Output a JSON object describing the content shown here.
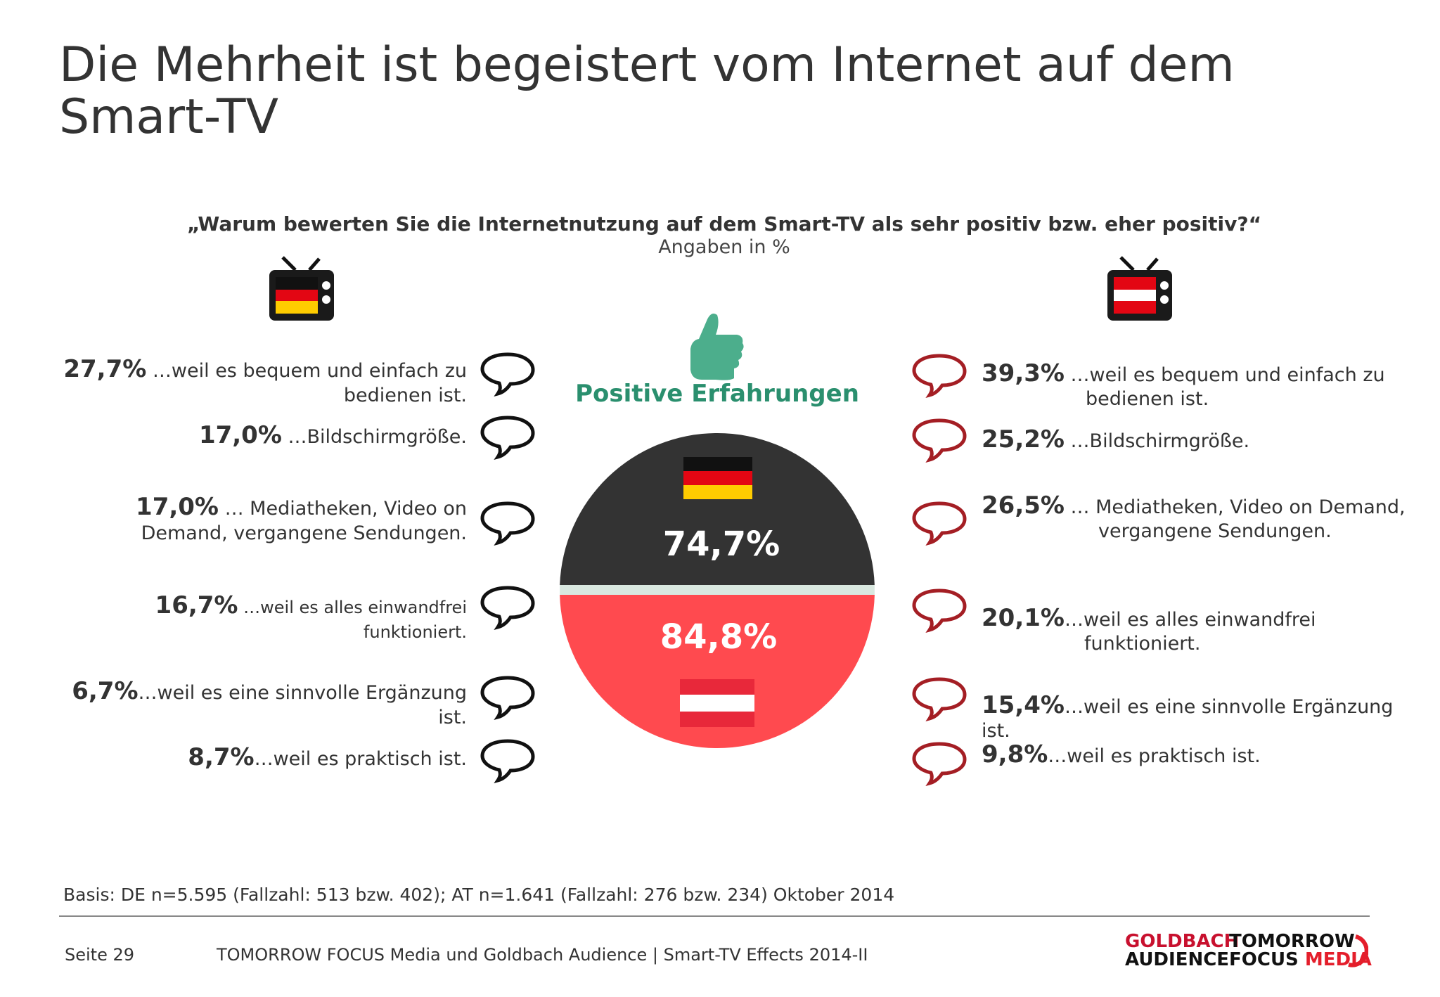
{
  "title": "Die Mehrheit ist begeistert vom Internet auf dem Smart-TV",
  "question": "„Warum bewerten Sie die Internetnutzung auf dem Smart-TV als sehr positiv bzw. eher positiv?“",
  "subtitle": "Angaben in %",
  "center_label": "Positive Erfahrungen",
  "colors": {
    "de_half": "#333333",
    "at_half": "#ff4a4f",
    "accent_green": "#2a8f6e",
    "bubble_red": "#a41e24"
  },
  "icons": [
    "tv-germany-icon",
    "tv-austria-icon",
    "thumbs-up-icon",
    "speech-bubble-icon"
  ],
  "chart_data": {
    "type": "pie",
    "segments": [
      {
        "label": "DE",
        "value": 74.7,
        "value_label": "74,7%"
      },
      {
        "label": "AT",
        "value": 84.8,
        "value_label": "84,8%"
      }
    ],
    "reasons": [
      {
        "text": "…weil es bequem und einfach zu bedienen ist.",
        "de": 27.7,
        "at": 39.3
      },
      {
        "text": "…Bildschirmgröße.",
        "de": 17.0,
        "at": 25.2
      },
      {
        "text": "… Mediatheken, Video on Demand, vergangene Sendungen.",
        "de": 17.0,
        "at": 26.5
      },
      {
        "text": "…weil es alles einwandfrei funktioniert.",
        "de": 16.7,
        "at": 20.1
      },
      {
        "text": "…weil es eine sinnvolle Ergänzung ist.",
        "de": 6.7,
        "at": 15.4
      },
      {
        "text": "…weil es praktisch ist.",
        "de": 8.7,
        "at": 9.8
      }
    ]
  },
  "left": [
    {
      "pct": "27,7%",
      "text": " …weil es bequem und einfach zu",
      "cont": "bedienen ist."
    },
    {
      "pct": "17,0%",
      "text": " …Bildschirmgröße.",
      "cont": ""
    },
    {
      "pct": "17,0%",
      "text": " … Mediatheken, Video on",
      "cont": "Demand, vergangene Sendungen."
    },
    {
      "pct": "16,7%",
      "text": " …weil es alles einwandfrei",
      "cont": "funktioniert."
    },
    {
      "pct": "6,7%",
      "text": "…weil es eine sinnvolle Ergänzung",
      "cont": "ist."
    },
    {
      "pct": "8,7%",
      "text": "…weil es praktisch ist.",
      "cont": ""
    }
  ],
  "right": [
    {
      "pct": "39,3%",
      "text": " …weil es bequem und einfach zu",
      "cont": "bedienen ist."
    },
    {
      "pct": "25,2%",
      "text": " …Bildschirmgröße.",
      "cont": ""
    },
    {
      "pct": "26,5%",
      "text": " … Mediatheken, Video on Demand,",
      "cont": "vergangene Sendungen."
    },
    {
      "pct": "20,1%",
      "text": "…weil es alles einwandfrei",
      "cont": "funktioniert."
    },
    {
      "pct": "15,4%",
      "text": "…weil es eine sinnvolle Ergänzung",
      "cont": "ist."
    },
    {
      "pct": "9,8%",
      "text": "…weil es praktisch ist.",
      "cont": ""
    }
  ],
  "footnote": "Basis: DE n=5.595 (Fallzahl: 513 bzw. 402); AT n=1.641 (Fallzahl: 276 bzw. 234) Oktober 2014",
  "footer": {
    "page": "Seite 29",
    "text": "TOMORROW FOCUS Media und Goldbach Audience | Smart-TV Effects 2014-II",
    "logo1_line1": "GOLDBACH",
    "logo1_line2": "AUDIENCE",
    "logo2_line1": "TOMORROW",
    "logo2_line2a": "FOCUS",
    "logo2_line2b": "MEDIA"
  }
}
